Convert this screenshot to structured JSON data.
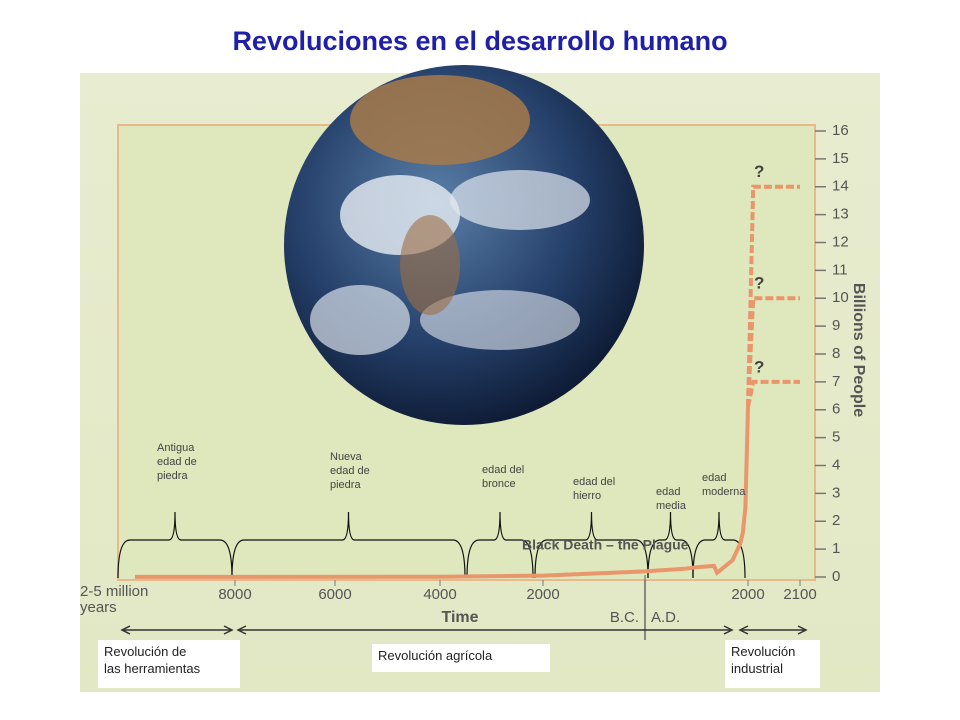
{
  "title": "Revoluciones en el desarrollo humano",
  "chart_data": {
    "type": "line",
    "x_label": "Time",
    "y_label": "Billions of People",
    "x_start_label": "2-5 million\nyears",
    "xticks": [
      {
        "value": -8000,
        "label": "8000"
      },
      {
        "value": -6000,
        "label": "6000"
      },
      {
        "value": -4000,
        "label": "4000"
      },
      {
        "value": -2000,
        "label": "2000"
      },
      2000,
      2100
    ],
    "era_divider": {
      "value": 0,
      "left_label": "B.C.",
      "right_label": "A.D."
    },
    "ylim": [
      0,
      16.2
    ],
    "yticks": [
      0,
      1,
      2,
      3,
      4,
      5,
      6,
      7,
      8,
      9,
      10,
      11,
      12,
      13,
      14,
      15,
      16
    ],
    "series": [
      {
        "color": "#e8966a",
        "x": [
          -10000,
          -8000,
          -4000,
          -2000,
          0,
          800,
          1000,
          1340,
          1400,
          1700,
          1850,
          1900,
          1950,
          2000
        ],
        "values": [
          0.005,
          0.005,
          0.01,
          0.05,
          0.2,
          0.3,
          0.35,
          0.4,
          0.15,
          0.6,
          1.2,
          1.6,
          2.5,
          6.1
        ]
      }
    ],
    "projections": [
      {
        "label": "?",
        "color": "#e8966a",
        "x": [
          2000,
          2010,
          2100
        ],
        "values": [
          6.1,
          14,
          14
        ]
      },
      {
        "label": "?",
        "color": "#e8966a",
        "x": [
          2000,
          2010,
          2100
        ],
        "values": [
          6.1,
          10,
          10
        ]
      },
      {
        "label": "?",
        "color": "#e8966a",
        "x": [
          2000,
          2010,
          2100
        ],
        "values": [
          6.1,
          7,
          7
        ]
      }
    ],
    "annotation": "Black Death – the Plague"
  },
  "eras": [
    "Antigua\nedad de\npiedra",
    "Nueva\nedad de\npiedra",
    "edad del\nbronce",
    "edad del\nhierro",
    "edad\nmedia",
    "edad\nmoderna"
  ],
  "revolutions": [
    "Revolución de\nlas herramientas",
    "Revolución agrícola",
    "Revolución\nindustrial"
  ]
}
